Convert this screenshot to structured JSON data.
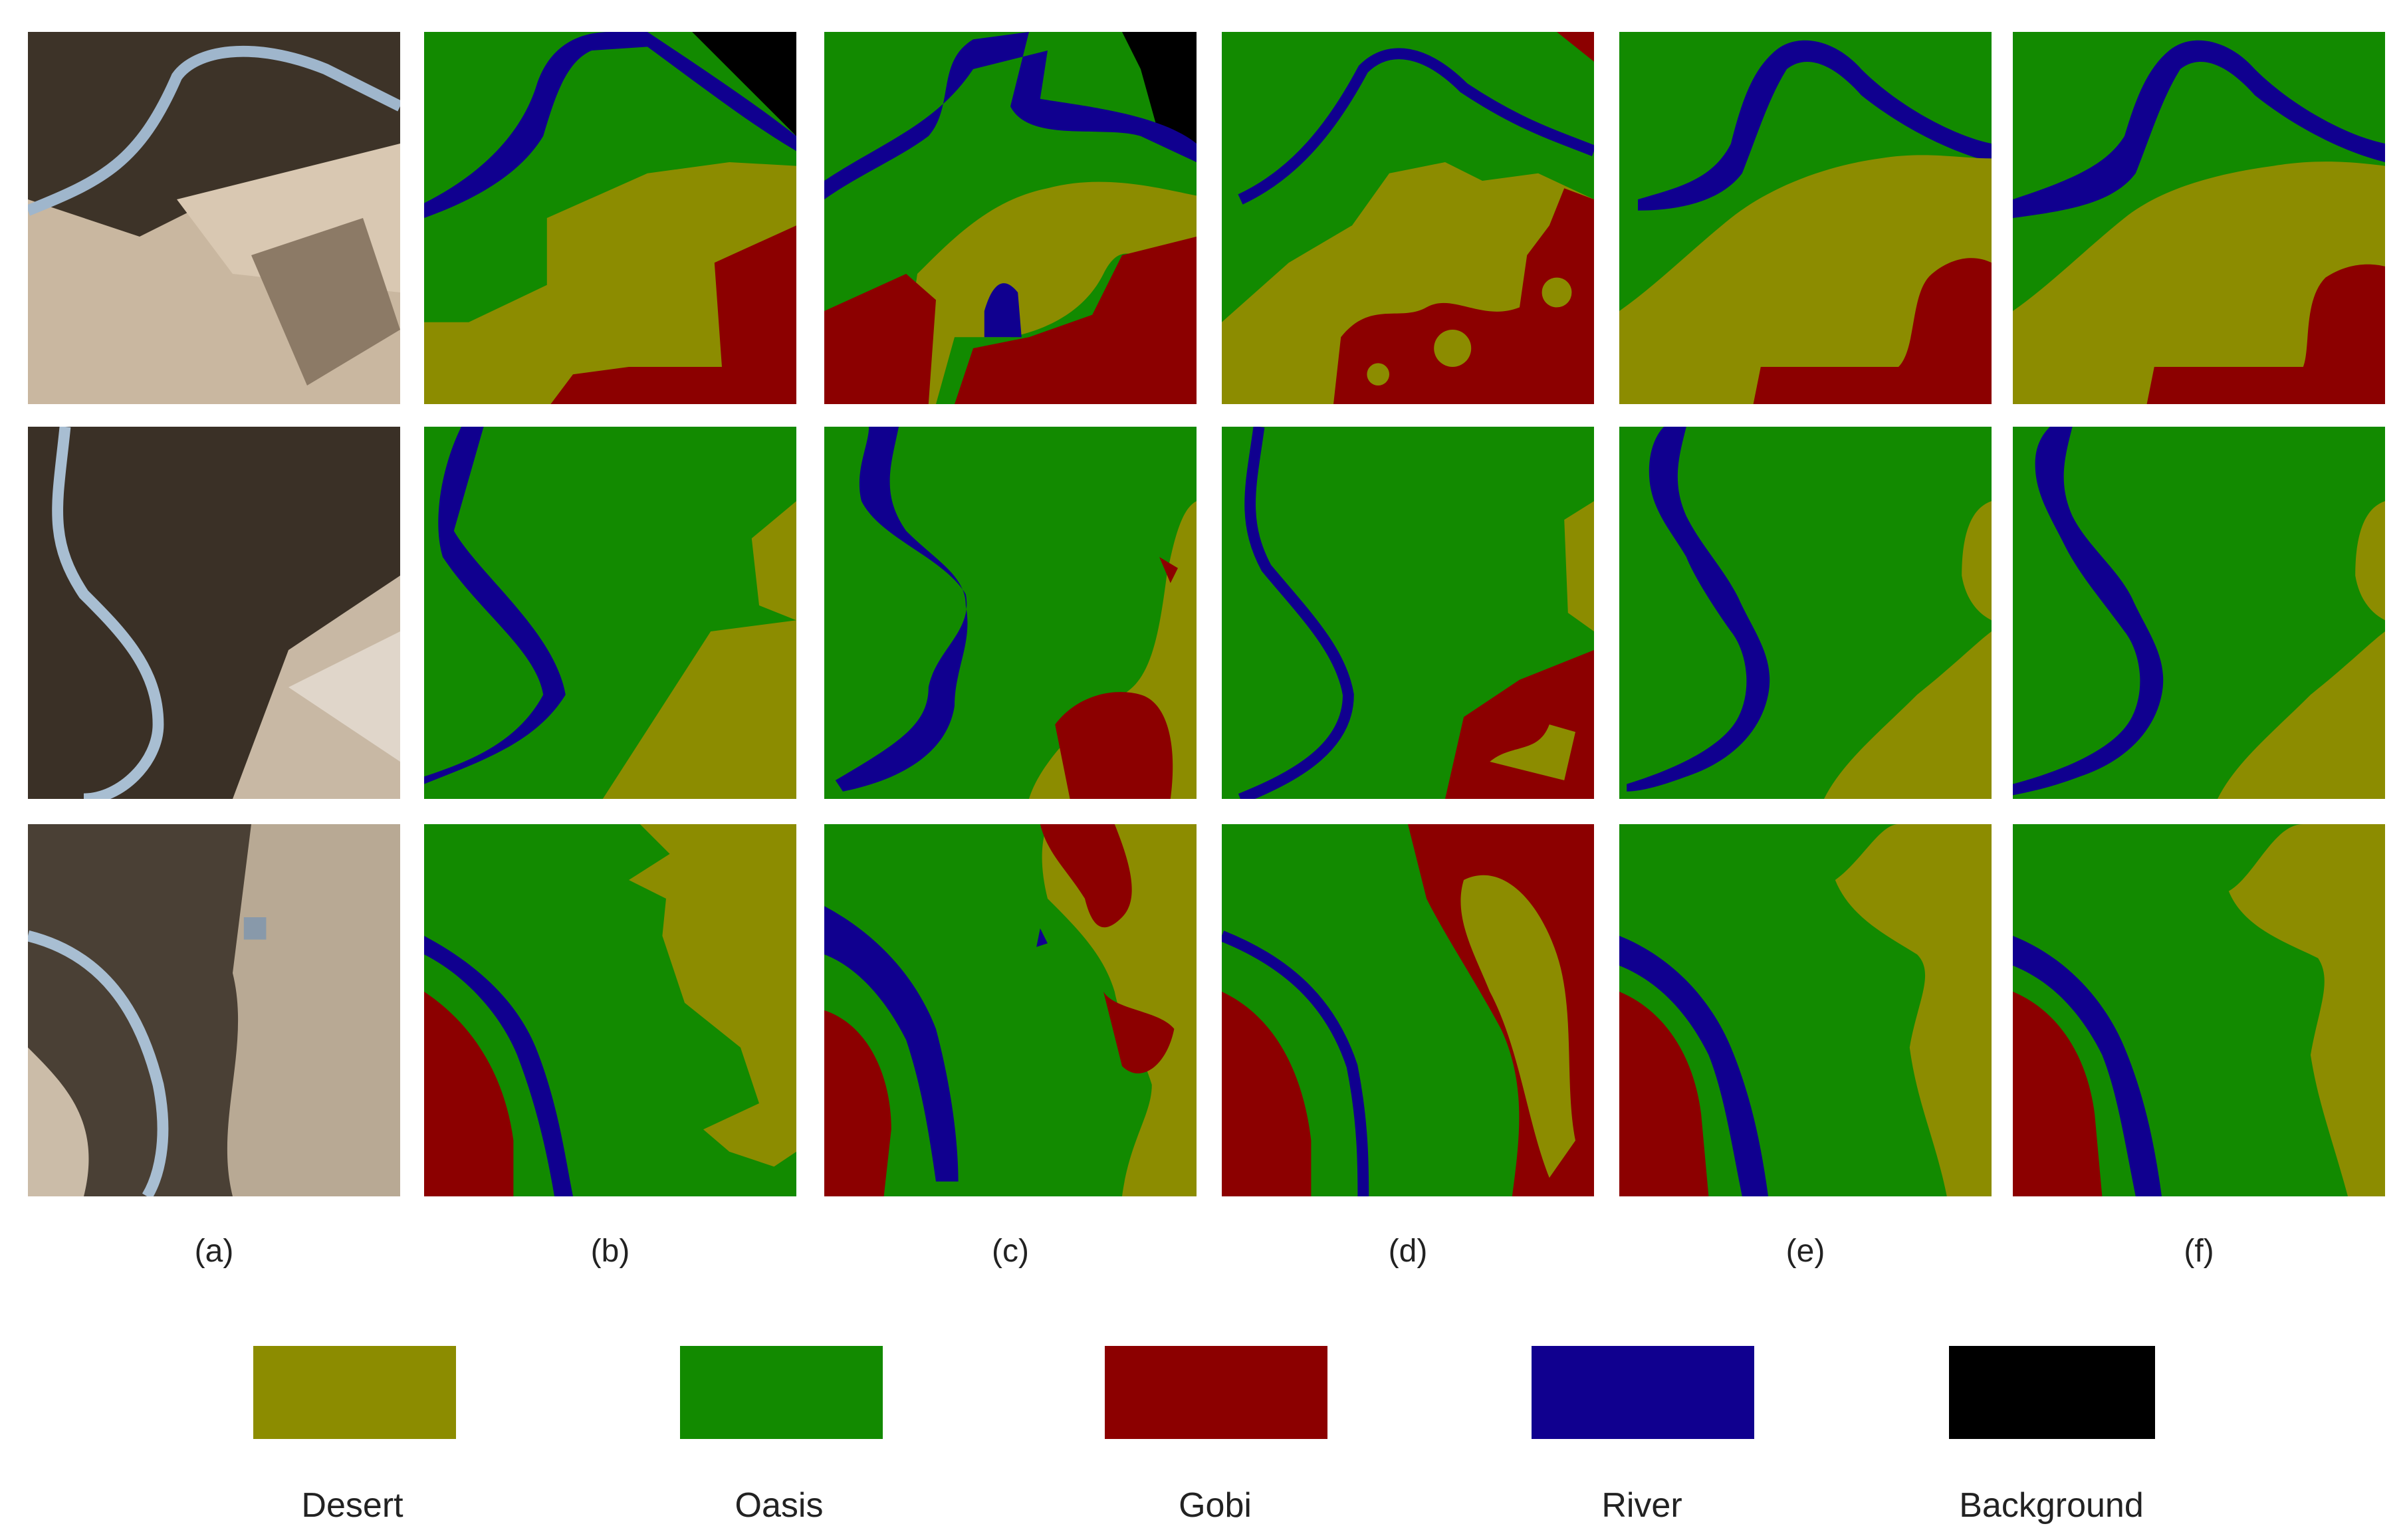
{
  "figure": {
    "column_labels": [
      "(a)",
      "(b)",
      "(c)",
      "(d)",
      "(e)",
      "(f)"
    ],
    "legend": [
      {
        "label": "Desert",
        "color": "#8c8c00"
      },
      {
        "label": "Oasis",
        "color": "#128a00"
      },
      {
        "label": "Gobi",
        "color": "#8c0000"
      },
      {
        "label": "River",
        "color": "#10008f"
      },
      {
        "label": "Background",
        "color": "#000000"
      }
    ]
  }
}
